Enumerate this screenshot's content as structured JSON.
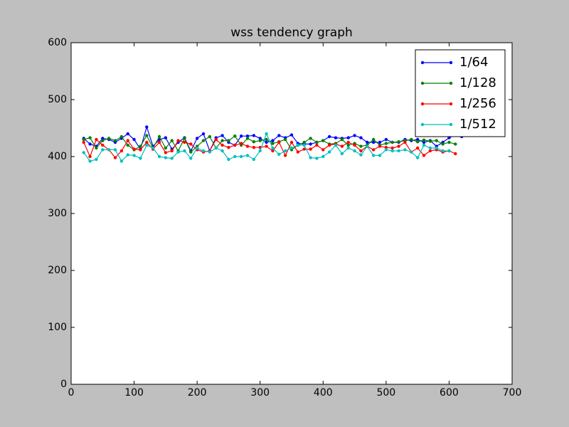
{
  "chart_data": {
    "type": "line",
    "title": "wss tendency graph",
    "xlim": [
      0,
      700
    ],
    "xticks": [
      0,
      100,
      200,
      300,
      400,
      500,
      600,
      700
    ],
    "ylim": [
      0,
      600
    ],
    "yticks": [
      0,
      100,
      200,
      300,
      400,
      500,
      600
    ],
    "legend": "upper right",
    "grid": false,
    "series": [
      {
        "name": "1/64",
        "color": "#0000ff",
        "x": [
          20,
          30,
          40,
          50,
          60,
          70,
          80,
          90,
          100,
          110,
          120,
          130,
          140,
          150,
          160,
          170,
          180,
          190,
          200,
          210,
          220,
          230,
          240,
          250,
          260,
          270,
          280,
          290,
          300,
          310,
          320,
          330,
          340,
          350,
          360,
          370,
          380,
          390,
          400,
          410,
          420,
          430,
          440,
          450,
          460,
          470,
          480,
          490,
          500,
          510,
          520,
          530,
          540,
          550,
          560,
          570,
          580,
          590,
          600,
          610,
          620
        ],
        "values": [
          432,
          422,
          418,
          432,
          430,
          425,
          432,
          440,
          430,
          413,
          452,
          418,
          430,
          433,
          413,
          425,
          433,
          410,
          432,
          440,
          410,
          433,
          437,
          425,
          420,
          436,
          436,
          437,
          432,
          425,
          428,
          437,
          433,
          438,
          423,
          422,
          422,
          425,
          428,
          435,
          433,
          432,
          433,
          437,
          433,
          425,
          425,
          425,
          430,
          425,
          425,
          430,
          428,
          430,
          425,
          428,
          418,
          425,
          433,
          438,
          435
        ]
      },
      {
        "name": "1/128",
        "color": "#008000",
        "x": [
          20,
          30,
          40,
          50,
          60,
          70,
          80,
          90,
          100,
          110,
          120,
          130,
          140,
          150,
          160,
          170,
          180,
          190,
          200,
          210,
          220,
          230,
          240,
          250,
          260,
          270,
          280,
          290,
          300,
          310,
          320,
          330,
          340,
          350,
          360,
          370,
          380,
          390,
          400,
          410,
          420,
          430,
          440,
          450,
          460,
          470,
          480,
          490,
          500,
          510,
          520,
          530,
          540,
          550,
          560,
          570,
          580,
          590,
          600,
          610
        ],
        "values": [
          430,
          433,
          415,
          428,
          432,
          428,
          435,
          420,
          412,
          418,
          437,
          415,
          435,
          415,
          428,
          410,
          432,
          408,
          418,
          428,
          435,
          415,
          428,
          428,
          436,
          420,
          432,
          426,
          428,
          430,
          423,
          426,
          430,
          412,
          420,
          425,
          432,
          425,
          428,
          422,
          423,
          430,
          420,
          423,
          418,
          420,
          430,
          420,
          423,
          425,
          426,
          428,
          430,
          426,
          429,
          427,
          428,
          422,
          425,
          422
        ]
      },
      {
        "name": "1/256",
        "color": "#ff0000",
        "x": [
          20,
          30,
          40,
          50,
          60,
          70,
          80,
          90,
          100,
          110,
          120,
          130,
          140,
          150,
          160,
          170,
          180,
          190,
          200,
          210,
          220,
          230,
          240,
          250,
          260,
          270,
          280,
          290,
          300,
          310,
          320,
          330,
          340,
          350,
          360,
          370,
          380,
          390,
          400,
          410,
          420,
          430,
          440,
          450,
          460,
          470,
          480,
          490,
          500,
          510,
          520,
          530,
          540,
          550,
          560,
          570,
          580,
          590,
          600,
          610
        ],
        "values": [
          425,
          400,
          430,
          420,
          412,
          398,
          410,
          428,
          413,
          412,
          425,
          413,
          425,
          407,
          410,
          428,
          425,
          422,
          412,
          408,
          410,
          430,
          420,
          416,
          420,
          423,
          418,
          416,
          416,
          418,
          410,
          425,
          402,
          425,
          408,
          413,
          413,
          420,
          412,
          420,
          422,
          418,
          425,
          420,
          410,
          418,
          412,
          418,
          416,
          415,
          418,
          425,
          408,
          415,
          402,
          410,
          412,
          408,
          410,
          405
        ]
      },
      {
        "name": "1/512",
        "color": "#00bfbf",
        "x": [
          20,
          30,
          40,
          50,
          60,
          70,
          80,
          90,
          100,
          110,
          120,
          130,
          140,
          150,
          160,
          170,
          180,
          190,
          200,
          210,
          220,
          230,
          240,
          250,
          260,
          270,
          280,
          290,
          300,
          310,
          320,
          330,
          340,
          350,
          360,
          370,
          380,
          390,
          400,
          410,
          420,
          430,
          440,
          450,
          460,
          470,
          480,
          490,
          500,
          510,
          520,
          530,
          540,
          550,
          560,
          570,
          580,
          590,
          600
        ],
        "values": [
          407,
          392,
          395,
          412,
          412,
          412,
          392,
          403,
          402,
          397,
          420,
          415,
          400,
          398,
          397,
          408,
          410,
          397,
          415,
          410,
          408,
          415,
          410,
          395,
          400,
          400,
          402,
          395,
          410,
          440,
          415,
          404,
          410,
          415,
          420,
          420,
          398,
          397,
          400,
          408,
          420,
          405,
          415,
          410,
          403,
          418,
          402,
          402,
          412,
          410,
          410,
          412,
          408,
          398,
          420,
          415,
          415,
          410,
          410
        ]
      }
    ]
  }
}
